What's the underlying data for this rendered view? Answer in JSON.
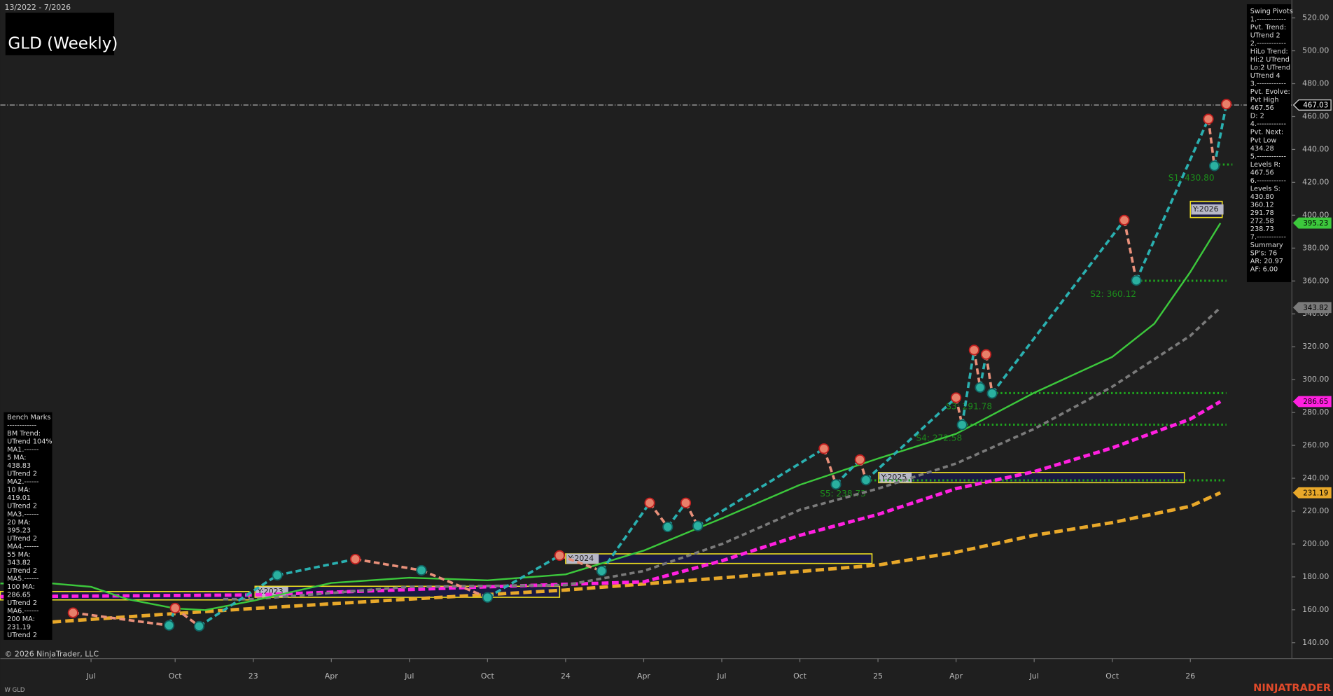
{
  "chart_data": {
    "type": "line",
    "range_text": "13/2022 - 7/2026",
    "title": "GLD (Weekly)",
    "copyright": "© 2026 NinjaTrader, LLC",
    "symbol_label": "W GLD",
    "brand": "NINJATRADER",
    "xlim": [
      -15.1,
      199.9
    ],
    "xticks": [
      {
        "value": 0,
        "label": "Jul"
      },
      {
        "value": 14,
        "label": "Oct"
      },
      {
        "value": 27,
        "label": "23"
      },
      {
        "value": 40,
        "label": "Apr"
      },
      {
        "value": 53,
        "label": "Jul"
      },
      {
        "value": 66,
        "label": "Oct"
      },
      {
        "value": 79,
        "label": "24"
      },
      {
        "value": 92,
        "label": "Apr"
      },
      {
        "value": 105,
        "label": "Jul"
      },
      {
        "value": 118,
        "label": "Oct"
      },
      {
        "value": 131,
        "label": "25"
      },
      {
        "value": 144,
        "label": "Apr"
      },
      {
        "value": 157,
        "label": "Jul"
      },
      {
        "value": 170,
        "label": "Oct"
      },
      {
        "value": 183,
        "label": "26"
      }
    ],
    "ylim": [
      130.3,
      530.9
    ],
    "yticks": [
      {
        "value": 140,
        "label": "140.00"
      },
      {
        "value": 160,
        "label": "160.00"
      },
      {
        "value": 180,
        "label": "180.00"
      },
      {
        "value": 200,
        "label": "200.00"
      },
      {
        "value": 220,
        "label": "220.00"
      },
      {
        "value": 240,
        "label": "240.00"
      },
      {
        "value": 260,
        "label": "260.00"
      },
      {
        "value": 280,
        "label": "280.00"
      },
      {
        "value": 300,
        "label": "300.00"
      },
      {
        "value": 320,
        "label": "320.00"
      },
      {
        "value": 340,
        "label": "340.00"
      },
      {
        "value": 360,
        "label": "360.00"
      },
      {
        "value": 380,
        "label": "380.00"
      },
      {
        "value": 400,
        "label": "400.00"
      },
      {
        "value": 420,
        "label": "420.00"
      },
      {
        "value": 440,
        "label": "440.00"
      },
      {
        "value": 460,
        "label": "460.00"
      },
      {
        "value": 480,
        "label": "480.00"
      },
      {
        "value": 500,
        "label": "500.00"
      },
      {
        "value": 520,
        "label": "520.00"
      }
    ],
    "series": [
      {
        "color": "#e8a82a",
        "dash": "10 5",
        "width": 4,
        "x": [
          -6.4,
          14,
          27,
          53,
          79,
          105,
          131,
          144,
          157,
          170,
          183,
          188
        ],
        "values": [
          152.6,
          157.7,
          160.8,
          166.5,
          172,
          179.4,
          187.2,
          195,
          205.3,
          213,
          223,
          231.19
        ]
      },
      {
        "color": "#ff20e0",
        "dash": "8 4",
        "width": 4,
        "x": [
          -15.1,
          27,
          66,
          92,
          105,
          118,
          131,
          144,
          157,
          170,
          183,
          188
        ],
        "values": [
          168,
          169,
          174,
          177,
          189.8,
          205.3,
          218,
          233.7,
          244,
          258.5,
          276,
          286.65
        ]
      },
      {
        "color": "#7a7a7a",
        "dash": "6 4",
        "width": 3,
        "x": [
          22,
          27,
          53,
          79,
          92,
          105,
          118,
          131,
          144,
          157,
          170,
          183,
          188
        ],
        "values": [
          166.5,
          166.5,
          174,
          175,
          183.6,
          200,
          220.8,
          233.7,
          249,
          270,
          295.7,
          326.7,
          343.82
        ]
      },
      {
        "color": "#3cc83c",
        "dash": "none",
        "width": 2,
        "x": [
          -15.1,
          -6.4,
          0,
          6,
          14,
          19,
          27,
          40,
          53,
          66,
          79,
          92,
          105,
          118,
          131,
          144,
          157,
          170,
          177,
          183,
          188
        ],
        "values": [
          176,
          176,
          174,
          166.5,
          160.8,
          159.8,
          165.5,
          176.3,
          179.5,
          177.9,
          181.5,
          196,
          215.6,
          236,
          252,
          267,
          292,
          313.8,
          334,
          365.5,
          395.23
        ]
      }
    ],
    "pivots": {
      "up_color": "#2ab0b0",
      "down_color": "#e8907a",
      "high_color": "#e8806a",
      "low_color": "#2ab0a0",
      "x": [
        -3,
        13,
        14,
        18,
        31,
        44,
        55,
        66,
        78,
        85,
        93,
        96,
        99,
        101,
        122,
        124,
        128,
        129,
        144,
        145,
        147,
        148,
        149,
        150,
        172,
        174,
        186,
        187,
        189
      ],
      "values": [
        158.2,
        150.5,
        161,
        150,
        181,
        190.8,
        184,
        167.5,
        193,
        183.6,
        225,
        210.4,
        225,
        211,
        258,
        236.3,
        251.3,
        238.9,
        289,
        272.5,
        318,
        295.2,
        315.3,
        291.6,
        397,
        360.3,
        458.5,
        430,
        467.56
      ]
    },
    "levels": [
      {
        "label": "S1: 430.80",
        "value": 430.8,
        "x": [
          187,
          190
        ]
      },
      {
        "label": "S2: 360.12",
        "value": 360.12,
        "x": [
          174,
          189
        ]
      },
      {
        "label": "S3: 291.78",
        "value": 291.78,
        "x": [
          150,
          189
        ]
      },
      {
        "label": "S4: 272.58",
        "value": 272.58,
        "x": [
          145,
          189
        ]
      },
      {
        "label": "S5: 238.73",
        "value": 238.73,
        "x": [
          129,
          189
        ]
      }
    ],
    "reference_line": 467.03,
    "year_boxes": [
      {
        "label": null,
        "x": [
          -15.1,
          26.3
        ],
        "range": [
          166,
          171.1
        ]
      },
      {
        "label": "Y:2023",
        "x": [
          27.3,
          78
        ],
        "range": [
          167.6,
          174.3
        ]
      },
      {
        "label": "Y:2024",
        "x": [
          79,
          130
        ],
        "range": [
          188.2,
          194
        ]
      },
      {
        "label": "Y:2025",
        "x": [
          131.1,
          182
        ],
        "range": [
          237.3,
          243.5
        ]
      },
      {
        "label": "Y:2026",
        "x": [
          183,
          188.3
        ],
        "range": [
          398.6,
          408.4
        ]
      }
    ],
    "tags": [
      {
        "value": 467.03,
        "color": "#000000",
        "text_color": "#ffffff"
      },
      {
        "value": 395.23,
        "color": "#3cc83c",
        "text_color": "#000000"
      },
      {
        "value": 343.82,
        "color": "#7a7a7a",
        "text_color": "#000000"
      },
      {
        "value": 286.65,
        "color": "#ff20e0",
        "text_color": "#000000"
      },
      {
        "value": 231.19,
        "color": "#e8a82a",
        "text_color": "#000000"
      }
    ],
    "swing_panel": [
      "Swing Pivots",
      "1.------------",
      "Pvt. Trend:",
      "UTrend 2",
      "2.------------",
      "HiLo Trend:",
      "Hi:2 UTrend",
      "Lo:2 UTrend",
      "UTrend 4",
      "3.------------",
      "Pvt. Evolve:",
      "Pvt High",
      "467.56",
      "D: 2",
      "4.------------",
      "Pvt. Next:",
      "Pvt Low",
      "434.28",
      "5.------------",
      "Levels R:",
      "467.56",
      "6.------------",
      "Levels S:",
      "430.80",
      "360.12",
      "291.78",
      "272.58",
      "238.73",
      "7.------------",
      "Summary",
      "SP's: 76",
      "AR: 20.97",
      "AF: 6.00"
    ],
    "bench_panel": [
      "Bench Marks",
      "------------",
      "BM Trend:",
      "UTrend 104%",
      "MA1.------",
      "5 MA:",
      "438.83",
      "UTrend 2",
      "MA2.------",
      "10 MA:",
      "419.01",
      "UTrend 2",
      "MA3.------",
      "20 MA:",
      "395.23",
      "UTrend 2",
      "MA4.------",
      "55 MA:",
      "343.82",
      "UTrend 2",
      "MA5.------",
      "100 MA:",
      "286.65",
      "UTrend 2",
      "MA6.------",
      "200 MA:",
      "231.19",
      "UTrend 2"
    ]
  }
}
